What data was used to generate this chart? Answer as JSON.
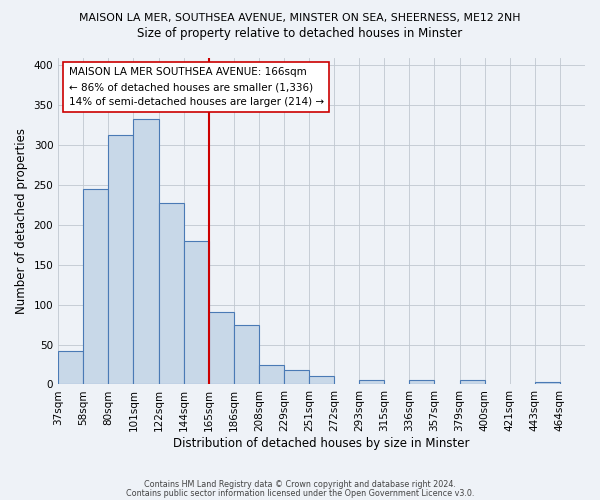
{
  "title_line1": "MAISON LA MER, SOUTHSEA AVENUE, MINSTER ON SEA, SHEERNESS, ME12 2NH",
  "title_line2": "Size of property relative to detached houses in Minster",
  "xlabel": "Distribution of detached houses by size in Minster",
  "ylabel": "Number of detached properties",
  "footer_line1": "Contains HM Land Registry data © Crown copyright and database right 2024.",
  "footer_line2": "Contains public sector information licensed under the Open Government Licence v3.0.",
  "bin_labels": [
    "37sqm",
    "58sqm",
    "80sqm",
    "101sqm",
    "122sqm",
    "144sqm",
    "165sqm",
    "186sqm",
    "208sqm",
    "229sqm",
    "251sqm",
    "272sqm",
    "293sqm",
    "315sqm",
    "336sqm",
    "357sqm",
    "379sqm",
    "400sqm",
    "421sqm",
    "443sqm",
    "464sqm"
  ],
  "bar_heights": [
    42,
    245,
    313,
    333,
    228,
    180,
    91,
    75,
    25,
    18,
    10,
    0,
    5,
    0,
    6,
    0,
    6,
    0,
    0,
    3,
    0
  ],
  "bar_color": "#c8d8e8",
  "bar_edge_color": "#4a7ab5",
  "vline_x": 6,
  "vline_color": "#cc0000",
  "annotation_line1": "MAISON LA MER SOUTHSEA AVENUE: 166sqm",
  "annotation_line2": "← 86% of detached houses are smaller (1,336)",
  "annotation_line3": "14% of semi-detached houses are larger (214) →",
  "ylim": [
    0,
    410
  ],
  "background_color": "#eef2f7",
  "plot_background": "#eef2f7",
  "grid_color": "#c0c8d0"
}
